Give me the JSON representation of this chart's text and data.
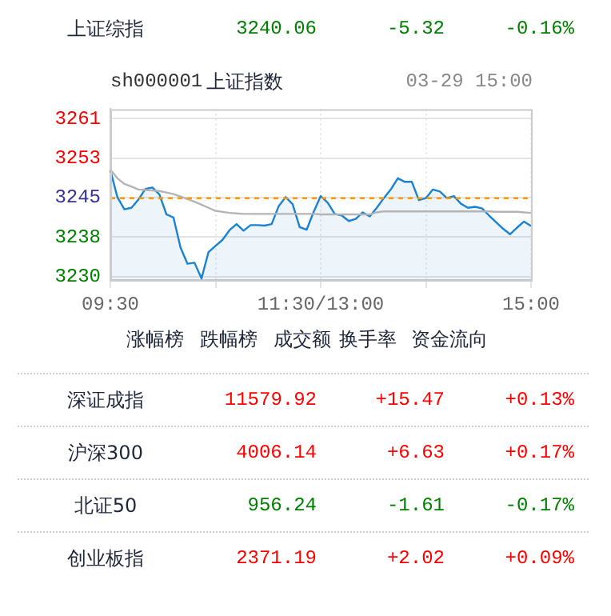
{
  "chart_data": {
    "type": "line",
    "title": "上证指数",
    "subtitle": "sh000001",
    "annotations": [
      "上证综指",
      "3240.06",
      "-5.32",
      "-0.16%",
      "03-29 15:00",
      "涨幅榜",
      "跌幅榜",
      "成交额",
      "换手率",
      "资金流向",
      "深证成指",
      "11579.92",
      "+15.47",
      "+0.13%",
      "沪深300",
      "4006.14",
      "+6.63",
      "+0.17%",
      "北证50",
      "956.24",
      "-1.61",
      "-0.17%",
      "创业板指",
      "2371.19",
      "+2.02",
      "+0.09%"
    ],
    "categories": [
      "09:30",
      null,
      null,
      null,
      null,
      null,
      null,
      null,
      null,
      null,
      null,
      null,
      null,
      null,
      null,
      null,
      null,
      null,
      null,
      null,
      null,
      null,
      null,
      null,
      null,
      null,
      null,
      null,
      null,
      null,
      "11:30/13:00",
      null,
      null,
      null,
      null,
      null,
      null,
      null,
      null,
      null,
      null,
      null,
      null,
      null,
      null,
      null,
      null,
      null,
      null,
      null,
      null,
      null,
      null,
      null,
      null,
      null,
      null,
      null,
      null,
      null,
      "15:00"
    ],
    "ylim": [
      3229.3,
      3262.9
    ],
    "yticks": [
      3230,
      {
        "value": 3237.75,
        "label": "3238"
      },
      {
        "value": 3245.5,
        "label": "3245"
      },
      {
        "value": 3253.25,
        "label": "3253"
      },
      3261
    ],
    "ref_lines": [
      {
        "axis": "y",
        "value": 3245.38,
        "color": "#ff9900",
        "line_style": "dashed"
      }
    ],
    "grid": true,
    "series": [
      {
        "type": "area",
        "color": "#1a82d2",
        "values": [
          3250.9,
          3245.6,
          3243.2,
          3243.5,
          3245.1,
          3247.2,
          3247.5,
          3246.1,
          3242.2,
          3241.6,
          3235.7,
          3232.5,
          3232.7,
          3229.6,
          3234.8,
          3236.0,
          3237.2,
          3239.1,
          3240.3,
          3239.0,
          3240.1,
          3240.1,
          3240.0,
          3240.3,
          3243.8,
          3245.6,
          3244.2,
          3239.7,
          3239.2,
          3242.7,
          3245.8,
          3244.5,
          3242.3,
          3242.0,
          3240.9,
          3241.3,
          3242.6,
          3241.8,
          3243.5,
          3245.4,
          3247.1,
          3249.3,
          3248.6,
          3248.6,
          3245.0,
          3245.4,
          3247.1,
          3246.7,
          3245.4,
          3245.8,
          3244.3,
          3243.5,
          3243.7,
          3243.4,
          3242.0,
          3240.7,
          3239.4,
          3238.3,
          3239.6,
          3240.8,
          3239.9
        ]
      },
      {
        "type": "line",
        "color": "#b4b4b4",
        "values": [
          3251.0,
          3249.3,
          3248.2,
          3247.7,
          3247.1,
          3247.0,
          3246.9,
          3246.8,
          3246.5,
          3246.2,
          3245.7,
          3245.2,
          3244.7,
          3244.1,
          3243.5,
          3242.9,
          3242.7,
          3242.5,
          3242.4,
          3242.3,
          3242.3,
          3242.3,
          3242.3,
          3242.3,
          3242.3,
          3242.3,
          3242.3,
          3242.3,
          3242.3,
          3242.3,
          3242.2,
          3242.2,
          3242.2,
          3242.2,
          3242.2,
          3242.2,
          3242.2,
          3242.2,
          3242.6,
          3242.8,
          3242.8,
          3242.8,
          3242.8,
          3242.8,
          3242.8,
          3242.8,
          3242.8,
          3242.8,
          3242.8,
          3242.8,
          3242.8,
          3242.8,
          3242.8,
          3242.8,
          3242.8,
          3242.7,
          3242.7,
          3242.7,
          3242.7,
          3242.6,
          3242.5
        ]
      }
    ]
  }
}
